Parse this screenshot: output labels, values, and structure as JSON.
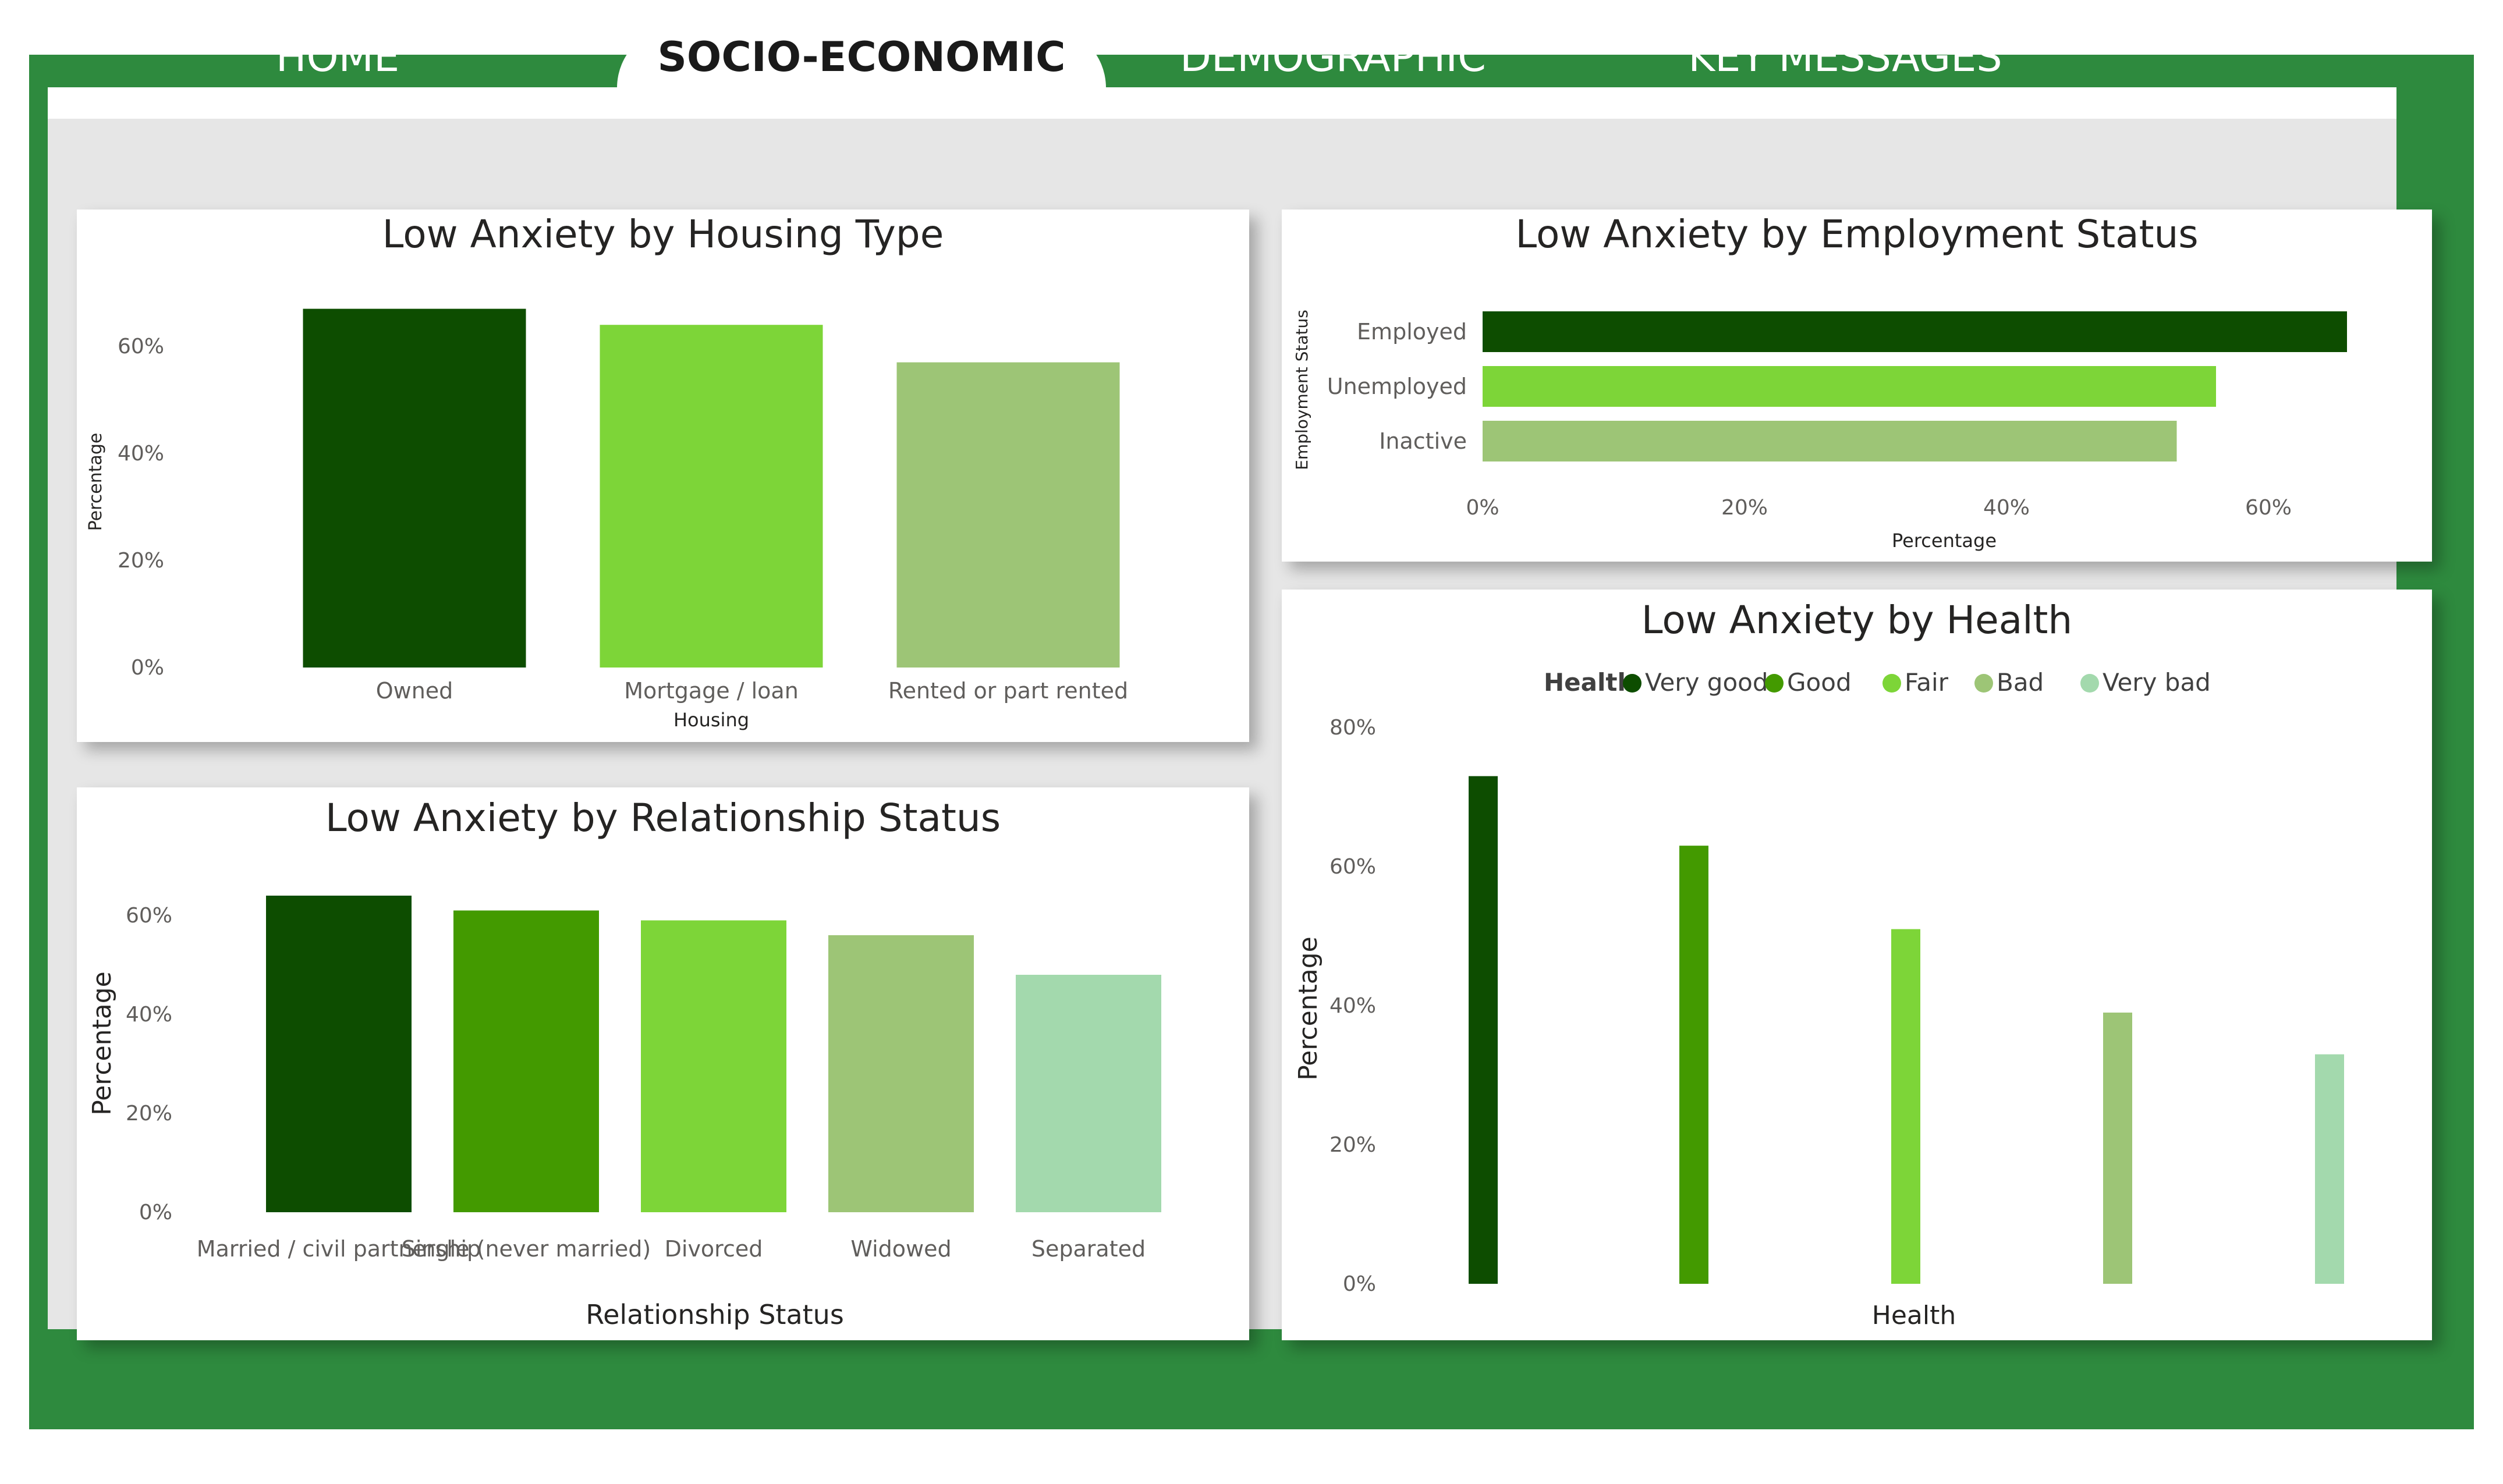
{
  "nav": {
    "tabs": [
      {
        "label": "HOME"
      },
      {
        "label": "SOCIO-ECONOMIC"
      },
      {
        "label": "DEMOGRAPHIC"
      },
      {
        "label": "KEY MESSAGES"
      }
    ],
    "active_tab": "SOCIO-ECONOMIC"
  },
  "colors": {
    "frame": "#2e8a3e",
    "very_dark_green": "#0d4d00",
    "dark_green": "#439a00",
    "bright_green": "#7dd538",
    "light_green": "#9dc576",
    "pale_green": "#a3d9ad"
  },
  "chart_data": [
    {
      "id": "housing",
      "type": "bar",
      "title": "Low Anxiety by Housing Type",
      "xlabel": "Housing",
      "ylabel": "Percentage",
      "categories": [
        "Owned",
        "Mortgage / loan",
        "Rented or part rented"
      ],
      "values": [
        67,
        64,
        57
      ],
      "colors": [
        "#0d4d00",
        "#7dd538",
        "#9dc576"
      ],
      "ylim": [
        0,
        70
      ],
      "yticks": [
        "0%",
        "20%",
        "40%",
        "60%"
      ],
      "grid": false
    },
    {
      "id": "employment",
      "type": "bar",
      "orientation": "horizontal",
      "title": "Low Anxiety by Employment Status",
      "xlabel": "Percentage",
      "ylabel": "Employment Status",
      "categories": [
        "Employed",
        "Unemployed",
        "Inactive"
      ],
      "values": [
        66,
        56,
        53
      ],
      "colors": [
        "#0d4d00",
        "#7dd538",
        "#9dc576"
      ],
      "xlim": [
        0,
        70
      ],
      "xticks": [
        "0%",
        "20%",
        "40%",
        "60%"
      ],
      "grid": false
    },
    {
      "id": "relationship",
      "type": "bar",
      "title": "Low Anxiety by Relationship Status",
      "xlabel": "Relationship Status",
      "ylabel": "Percentage",
      "categories": [
        "Married / civil partnership",
        "Single (never married)",
        "Divorced",
        "Widowed",
        "Separated"
      ],
      "values": [
        64,
        61,
        59,
        56,
        48
      ],
      "colors": [
        "#0d4d00",
        "#439a00",
        "#7dd538",
        "#9dc576",
        "#a3d9ad"
      ],
      "ylim": [
        0,
        65
      ],
      "yticks": [
        "0%",
        "20%",
        "40%",
        "60%"
      ],
      "grid": false
    },
    {
      "id": "health",
      "type": "bar",
      "title": "Low Anxiety by Health",
      "xlabel": "Health",
      "ylabel": "Percentage",
      "legend_title": "Health",
      "legend_position": "top",
      "series": [
        {
          "name": "Very good",
          "value": 73,
          "color": "#0d4d00"
        },
        {
          "name": "Good",
          "value": 63,
          "color": "#439a00"
        },
        {
          "name": "Fair",
          "value": 51,
          "color": "#7dd538"
        },
        {
          "name": "Bad",
          "value": 39,
          "color": "#9dc576"
        },
        {
          "name": "Very bad",
          "value": 33,
          "color": "#a3d9ad"
        }
      ],
      "ylim": [
        0,
        80
      ],
      "yticks": [
        "0%",
        "20%",
        "40%",
        "60%",
        "80%"
      ],
      "grid": false
    }
  ]
}
